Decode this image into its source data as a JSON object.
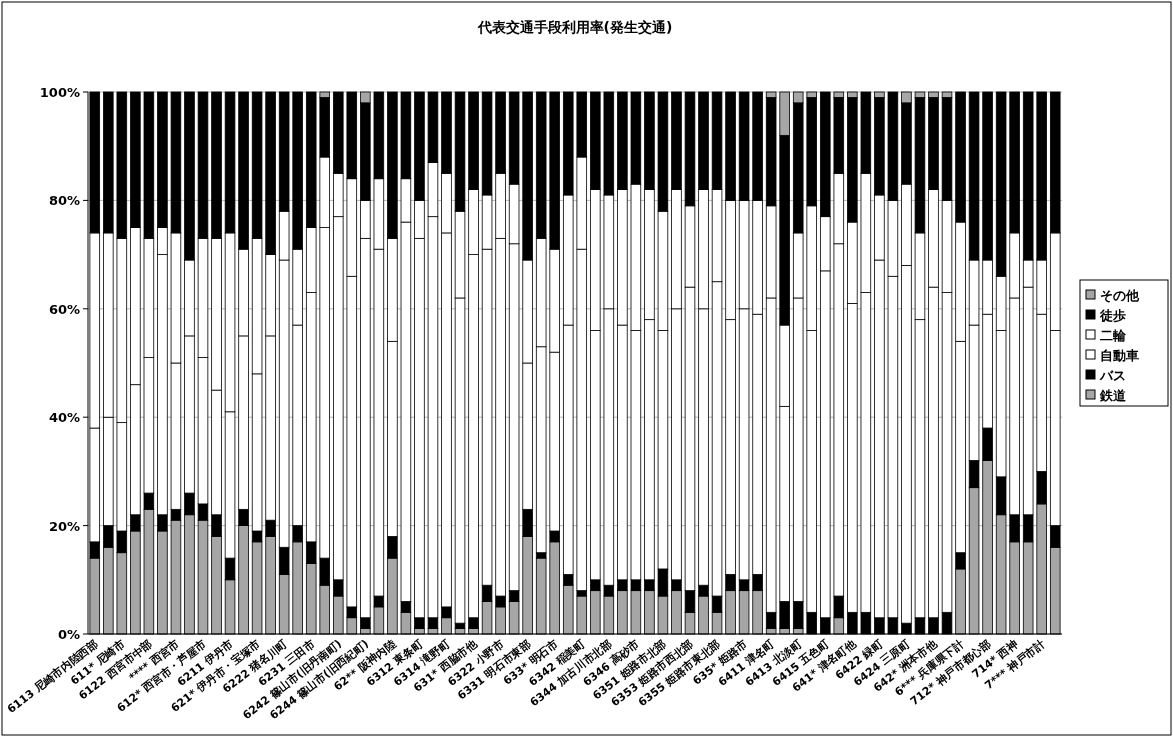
{
  "chart_data": {
    "type": "bar",
    "title": "代表交通手段利用率(発生交通)",
    "stacked": true,
    "categories": [
      "6113 尼崎市内陸西部",
      null,
      "611* 尼崎市",
      null,
      "6122 西宮市中部",
      null,
      "**** 西宮市",
      null,
      "612* 西宮市・芦屋市",
      null,
      "6211 伊丹市",
      null,
      "621* 伊丹市・宝塚市",
      null,
      "6222 猪名川町",
      null,
      "6231 三田市",
      null,
      "6242 篠山市(旧丹南町)",
      null,
      "6244 篠山市(旧西紀町)",
      null,
      "62** 阪神内陸",
      null,
      "6312 東条町",
      null,
      "6314 滝野町",
      null,
      "631* 西脇市他",
      null,
      "6322 小野市",
      null,
      "6331 明石市東部",
      null,
      "633* 明石市",
      null,
      "6342 稲美町",
      null,
      "6344 加古川市北部",
      null,
      "6346 高砂市",
      null,
      "6351 姫路市北部",
      null,
      "6353 姫路市西北部",
      null,
      "6355 姫路市東北部",
      null,
      "635* 姫路市",
      null,
      "6411 津名町",
      null,
      "6413 北淡町",
      null,
      "6415 五色町",
      null,
      "641* 津名町他",
      null,
      "6422 緑町",
      null,
      "6424 三原町",
      null,
      "642* 洲本市他",
      null,
      "6*** 兵庫県下計",
      null,
      "712* 神戸市都心部",
      null,
      "714* 西神",
      null,
      "7*** 神戸市計",
      null
    ],
    "series": [
      {
        "name": "鉄道",
        "color": "#a6a6a6",
        "values": [
          14,
          16,
          15,
          19,
          23,
          19,
          21,
          22,
          21,
          18,
          10,
          20,
          17,
          18,
          11,
          17,
          13,
          9,
          7,
          3,
          1,
          5,
          14,
          4,
          1,
          1,
          3,
          1,
          1,
          6,
          5,
          6,
          18,
          14,
          17,
          9,
          7,
          8,
          7,
          8,
          8,
          8,
          7,
          8,
          4,
          7,
          4,
          8,
          8,
          8,
          1,
          1,
          1,
          0,
          0,
          3,
          0,
          0,
          0,
          0,
          0,
          0,
          0,
          0,
          12,
          27,
          32,
          22,
          17,
          17,
          24,
          16
        ]
      },
      {
        "name": "バス",
        "color": "#000000",
        "values": [
          3,
          4,
          4,
          3,
          3,
          3,
          2,
          4,
          3,
          4,
          4,
          3,
          2,
          3,
          5,
          3,
          4,
          5,
          3,
          2,
          2,
          2,
          4,
          2,
          2,
          2,
          2,
          1,
          2,
          3,
          2,
          2,
          5,
          1,
          2,
          2,
          1,
          2,
          2,
          2,
          2,
          2,
          5,
          2,
          4,
          2,
          3,
          3,
          2,
          3,
          3,
          5,
          5,
          4,
          3,
          4,
          4,
          4,
          3,
          3,
          2,
          3,
          3,
          4,
          3,
          5,
          6,
          7,
          5,
          5,
          6,
          4
        ]
      },
      {
        "name": "自動車",
        "color": "#ffffff",
        "values": [
          21,
          20,
          20,
          24,
          25,
          48,
          27,
          29,
          27,
          23,
          27,
          32,
          29,
          34,
          53,
          37,
          46,
          61,
          67,
          61,
          70,
          64,
          36,
          70,
          70,
          74,
          69,
          60,
          67,
          62,
          66,
          64,
          27,
          38,
          33,
          46,
          63,
          46,
          51,
          47,
          46,
          48,
          44,
          50,
          56,
          51,
          58,
          47,
          50,
          48,
          58,
          36,
          56,
          52,
          64,
          65,
          57,
          59,
          66,
          63,
          66,
          55,
          61,
          59,
          39,
          25,
          21,
          27,
          40,
          42,
          29,
          36
        ]
      },
      {
        "name": "二輪",
        "color": "#ffffff",
        "values": [
          36,
          34,
          34,
          29,
          22,
          5,
          24,
          14,
          22,
          28,
          33,
          16,
          25,
          15,
          9,
          14,
          12,
          13,
          8,
          18,
          7,
          13,
          19,
          8,
          7,
          10,
          11,
          16,
          12,
          10,
          12,
          11,
          19,
          20,
          19,
          24,
          17,
          26,
          21,
          25,
          27,
          24,
          22,
          22,
          15,
          22,
          17,
          22,
          20,
          21,
          17,
          15,
          12,
          23,
          10,
          13,
          15,
          22,
          12,
          14,
          15,
          16,
          18,
          17,
          22,
          12,
          10,
          10,
          12,
          5,
          10,
          18
        ]
      },
      {
        "name": "徒歩",
        "color": "#000000",
        "values": [
          26,
          26,
          27,
          25,
          27,
          25,
          26,
          31,
          27,
          27,
          26,
          29,
          27,
          30,
          22,
          29,
          25,
          11,
          15,
          16,
          18,
          16,
          27,
          16,
          20,
          13,
          15,
          22,
          18,
          19,
          15,
          17,
          31,
          27,
          29,
          19,
          12,
          18,
          19,
          18,
          17,
          18,
          22,
          18,
          21,
          18,
          18,
          20,
          20,
          20,
          20,
          35,
          24,
          20,
          23,
          14,
          23,
          15,
          18,
          20,
          15,
          25,
          17,
          19,
          24,
          31,
          31,
          34,
          26,
          31,
          31,
          26
        ]
      },
      {
        "name": "その他",
        "color": "#a6a6a6",
        "values": [
          0,
          0,
          0,
          0,
          0,
          0,
          0,
          0,
          0,
          0,
          0,
          0,
          0,
          0,
          0,
          0,
          0,
          1,
          0,
          0,
          2,
          0,
          0,
          0,
          0,
          0,
          0,
          0,
          0,
          0,
          0,
          0,
          0,
          0,
          0,
          0,
          0,
          0,
          0,
          0,
          0,
          0,
          0,
          0,
          0,
          0,
          0,
          0,
          0,
          0,
          1,
          8,
          2,
          1,
          0,
          1,
          1,
          0,
          1,
          0,
          2,
          1,
          1,
          1,
          0,
          0,
          0,
          0,
          0,
          0,
          0,
          0
        ]
      }
    ],
    "ylim": [
      0,
      100
    ],
    "yticks": [
      {
        "value": 0,
        "label": "0%"
      },
      {
        "value": 20,
        "label": "20%"
      },
      {
        "value": 40,
        "label": "40%"
      },
      {
        "value": 60,
        "label": "60%"
      },
      {
        "value": 80,
        "label": "80%"
      },
      {
        "value": 100,
        "label": "100%"
      }
    ],
    "grid": "y",
    "legend": "right"
  }
}
